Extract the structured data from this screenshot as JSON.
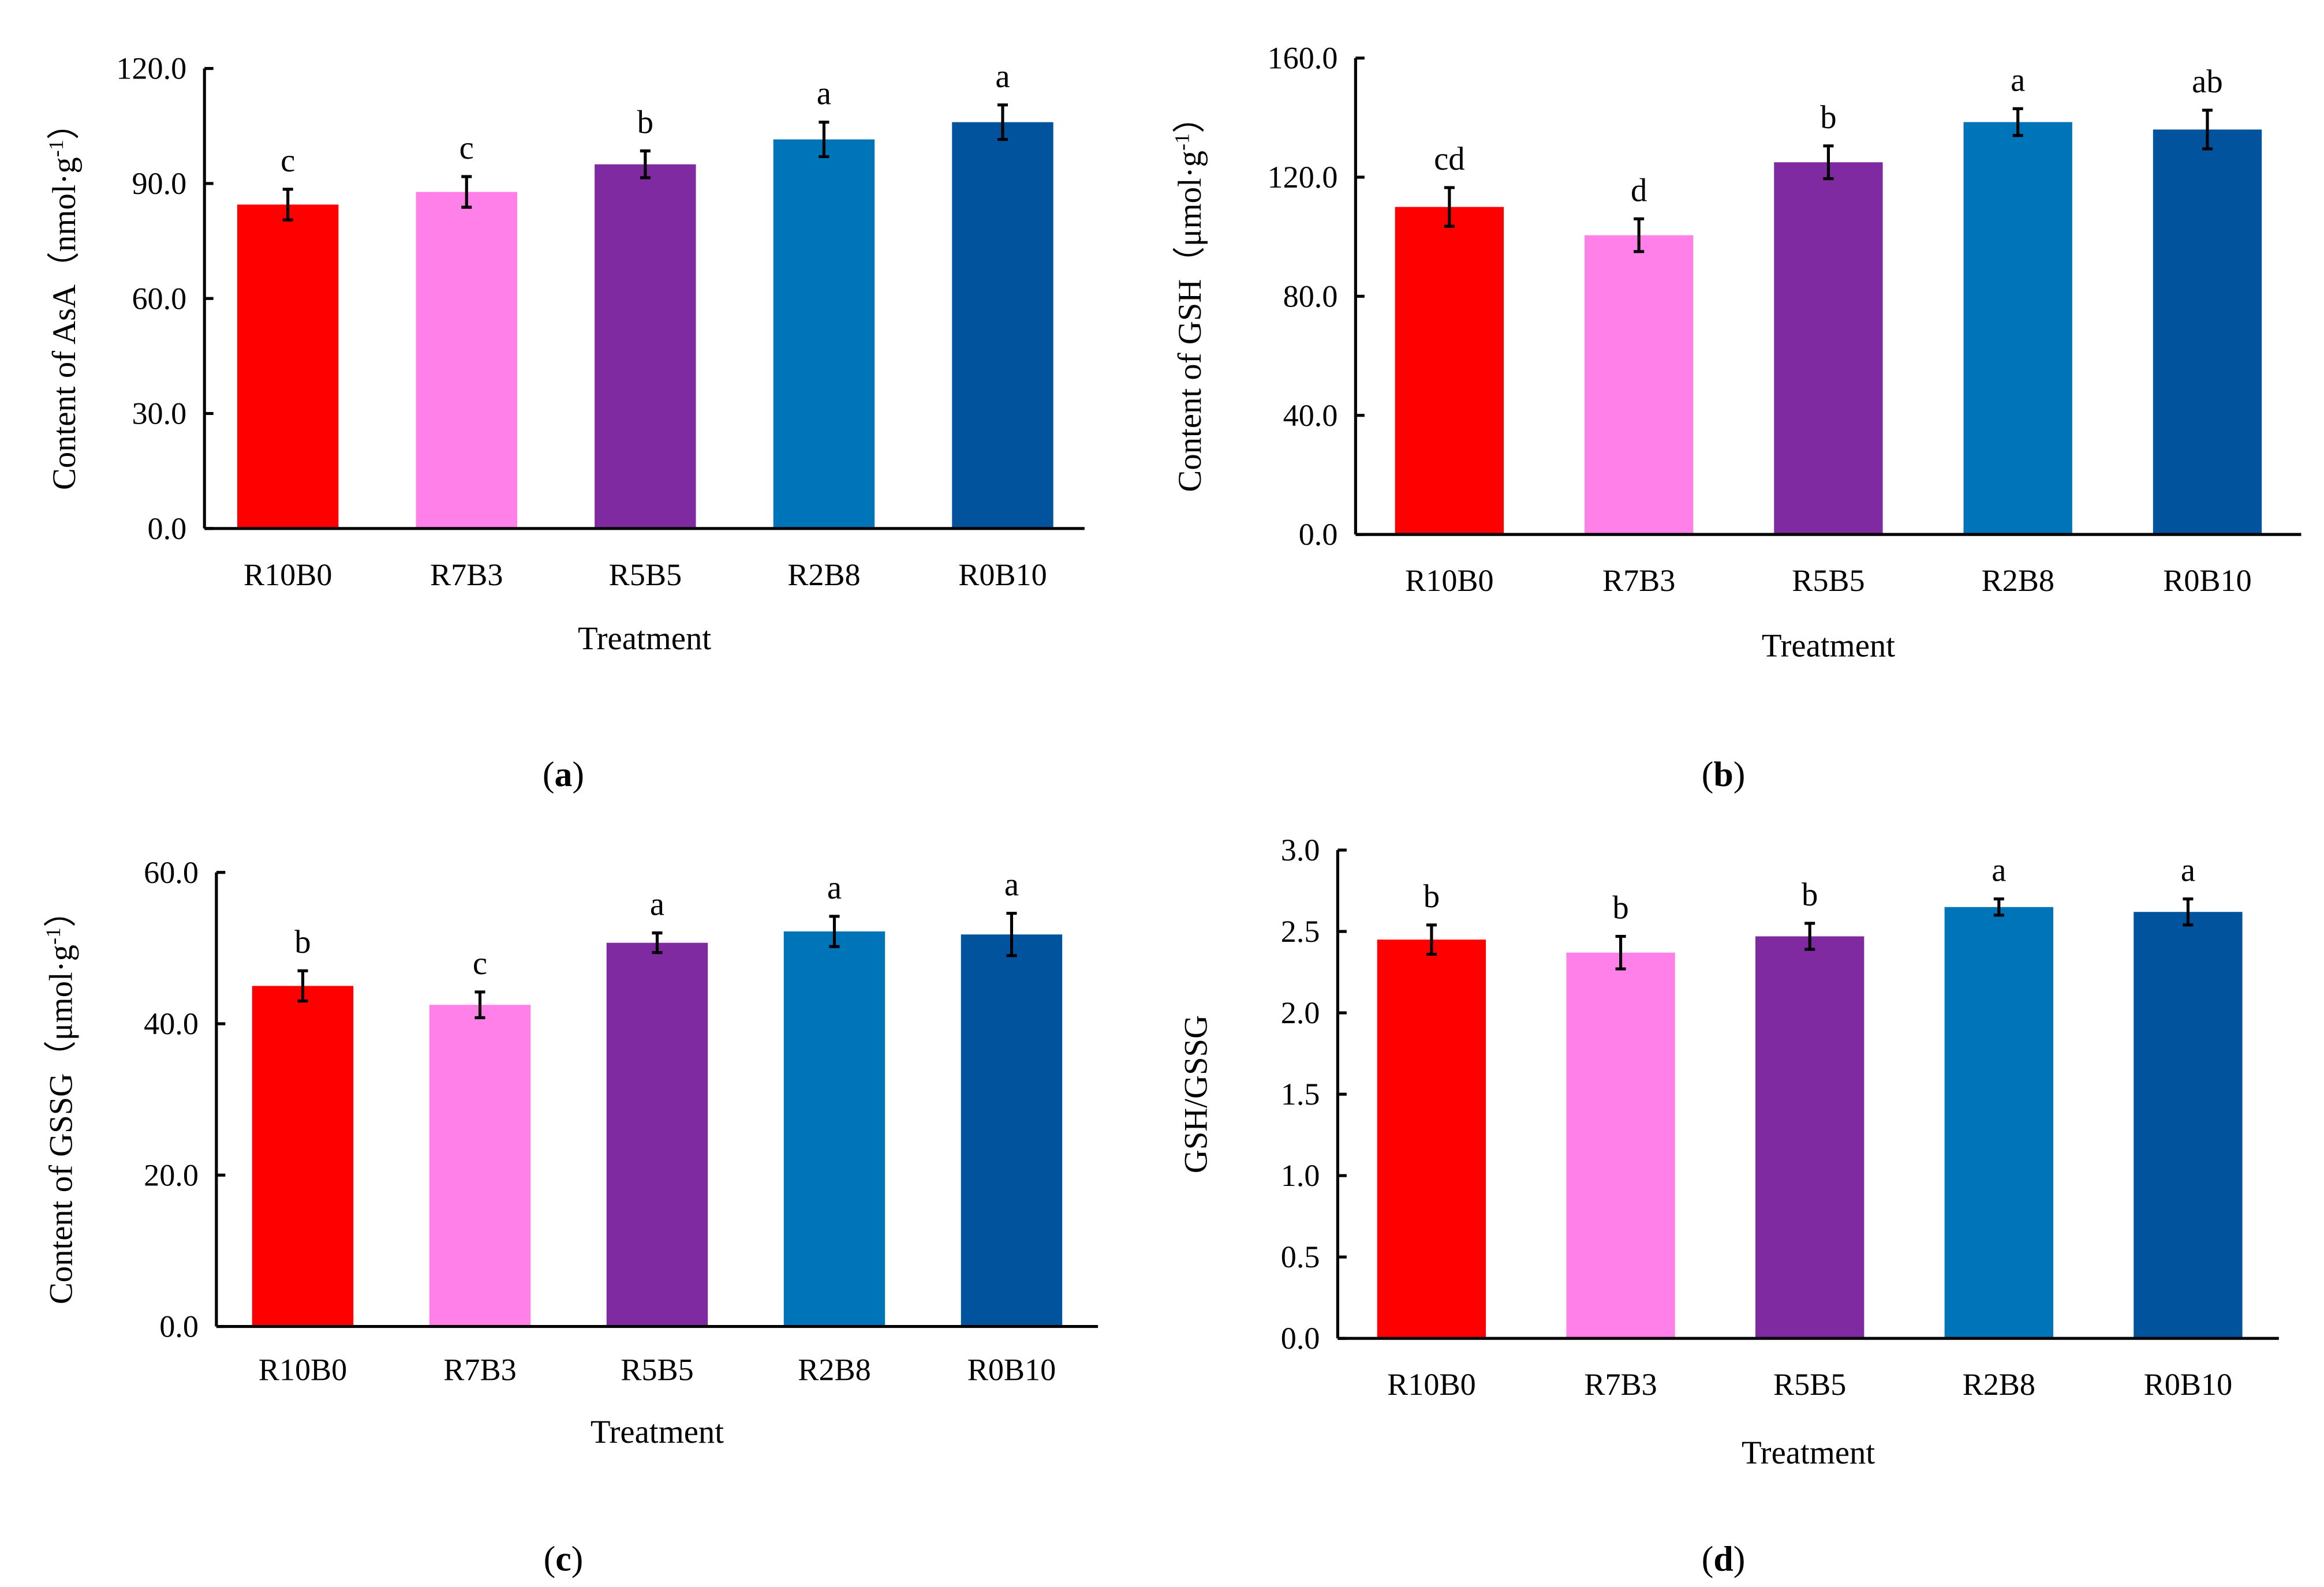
{
  "chart_data": [
    {
      "type": "bar",
      "panel_label": {
        "open": "(",
        "letter": "a",
        "close": ")"
      },
      "title": "",
      "xlabel": "Treatment",
      "ylabel": {
        "main": "Content of AsA",
        "unit_open": "（nmol·g",
        "unit_sup": "-1",
        "unit_close": "）"
      },
      "ylim": [
        0,
        120
      ],
      "yticks": [
        "0.0",
        "30.0",
        "60.0",
        "90.0",
        "120.0"
      ],
      "ytick_values": [
        0,
        30,
        60,
        90,
        120
      ],
      "categories": [
        "R10B0",
        "R7B3",
        "R5B5",
        "R2B8",
        "R0B10"
      ],
      "values": [
        84.5,
        87.8,
        95.0,
        101.5,
        106.0
      ],
      "errors": [
        4.0,
        4.0,
        3.5,
        4.5,
        4.5
      ],
      "significance": [
        "c",
        "c",
        "b",
        "a",
        "a"
      ],
      "colors": [
        "#ff0000",
        "#ff80e8",
        "#7f2aa0",
        "#0074b9",
        "#00539c"
      ]
    },
    {
      "type": "bar",
      "panel_label": {
        "open": "(",
        "letter": "b",
        "close": ")"
      },
      "title": "",
      "xlabel": "Treatment",
      "ylabel": {
        "main": "Content of GSH",
        "unit_open": "（μmol·g",
        "unit_sup": "-1",
        "unit_close": "）"
      },
      "ylim": [
        0,
        160
      ],
      "yticks": [
        "0.0",
        "40.0",
        "80.0",
        "120.0",
        "160.0"
      ],
      "ytick_values": [
        0,
        40,
        80,
        120,
        160
      ],
      "categories": [
        "R10B0",
        "R7B3",
        "R5B5",
        "R2B8",
        "R0B10"
      ],
      "values": [
        110.0,
        100.5,
        125.0,
        138.5,
        136.0
      ],
      "errors": [
        6.5,
        5.5,
        5.5,
        4.5,
        6.5
      ],
      "significance": [
        "cd",
        "d",
        "b",
        "a",
        "ab"
      ],
      "colors": [
        "#ff0000",
        "#ff80e8",
        "#7f2aa0",
        "#0074b9",
        "#00539c"
      ]
    },
    {
      "type": "bar",
      "panel_label": {
        "open": "(",
        "letter": "c",
        "close": ")"
      },
      "title": "",
      "xlabel": "Treatment",
      "ylabel": {
        "main": "Content of GSSG",
        "unit_open": "（μmol·g",
        "unit_sup": "-1",
        "unit_close": "）"
      },
      "ylim": [
        0,
        60
      ],
      "yticks": [
        "0.0",
        "20.0",
        "40.0",
        "60.0"
      ],
      "ytick_values": [
        0,
        20,
        40,
        60
      ],
      "categories": [
        "R10B0",
        "R7B3",
        "R5B5",
        "R2B8",
        "R0B10"
      ],
      "values": [
        45.0,
        42.5,
        50.7,
        52.2,
        51.8
      ],
      "errors": [
        2.0,
        1.7,
        1.3,
        2.0,
        2.8
      ],
      "significance": [
        "b",
        "c",
        "a",
        "a",
        "a"
      ],
      "colors": [
        "#ff0000",
        "#ff80e8",
        "#7f2aa0",
        "#0074b9",
        "#00539c"
      ]
    },
    {
      "type": "bar",
      "panel_label": {
        "open": "(",
        "letter": "d",
        "close": ")"
      },
      "title": "",
      "xlabel": "Treatment",
      "ylabel": {
        "main": "GSH/GSSG",
        "unit_open": "",
        "unit_sup": "",
        "unit_close": ""
      },
      "ylim": [
        0,
        3.0
      ],
      "yticks": [
        "0.0",
        "0.5",
        "1.0",
        "1.5",
        "2.0",
        "2.5",
        "3.0"
      ],
      "ytick_values": [
        0,
        0.5,
        1.0,
        1.5,
        2.0,
        2.5,
        3.0
      ],
      "categories": [
        "R10B0",
        "R7B3",
        "R5B5",
        "R2B8",
        "R0B10"
      ],
      "values": [
        2.45,
        2.37,
        2.47,
        2.65,
        2.62
      ],
      "errors": [
        0.09,
        0.1,
        0.08,
        0.05,
        0.08
      ],
      "significance": [
        "b",
        "b",
        "b",
        "a",
        "a"
      ],
      "colors": [
        "#ff0000",
        "#ff80e8",
        "#7f2aa0",
        "#0074b9",
        "#00539c"
      ]
    }
  ]
}
